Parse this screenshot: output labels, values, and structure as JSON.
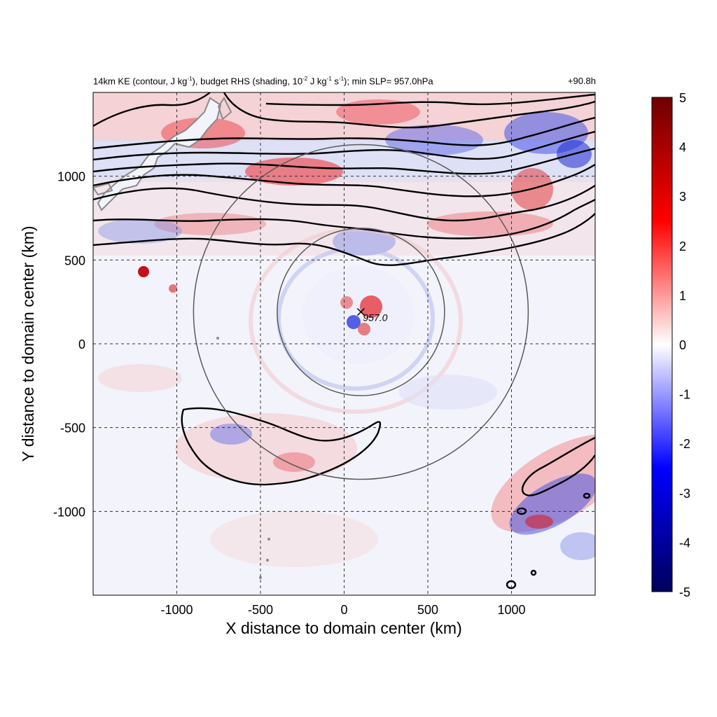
{
  "chart_data": {
    "type": "heatmap",
    "title_parts": {
      "a": "14km KE (contour, J kg",
      "a_sup": "-1",
      "b": "), budget RHS (shading, 10",
      "b_sup": "-2",
      "c": " J kg",
      "c_sup": "-1",
      "d": " s",
      "d_sup": "-1",
      "e": "); min SLP= 957.0hPa"
    },
    "time_label": "+90.8h",
    "xlabel": "X distance to domain center (km)",
    "ylabel": "Y distance to domain center (km)",
    "xlim": [
      -1500,
      1500
    ],
    "ylim": [
      -1500,
      1500
    ],
    "x_ticks": [
      -1000,
      -500,
      0,
      500,
      1000
    ],
    "y_ticks": [
      1000,
      500,
      0,
      -500,
      -1000
    ],
    "colorbar": {
      "min": -5,
      "max": 5,
      "ticks": [
        5,
        4,
        3,
        2,
        1,
        0,
        -1,
        -2,
        -3,
        -4,
        -5
      ],
      "colormap": [
        "#00005a",
        "#0000ff",
        "#ffffff",
        "#ff0000",
        "#6e0000"
      ]
    },
    "storm_center": {
      "x": 100,
      "y": 190,
      "label": "957.0"
    },
    "range_rings_km": [
      500,
      1000
    ],
    "grid": true
  }
}
